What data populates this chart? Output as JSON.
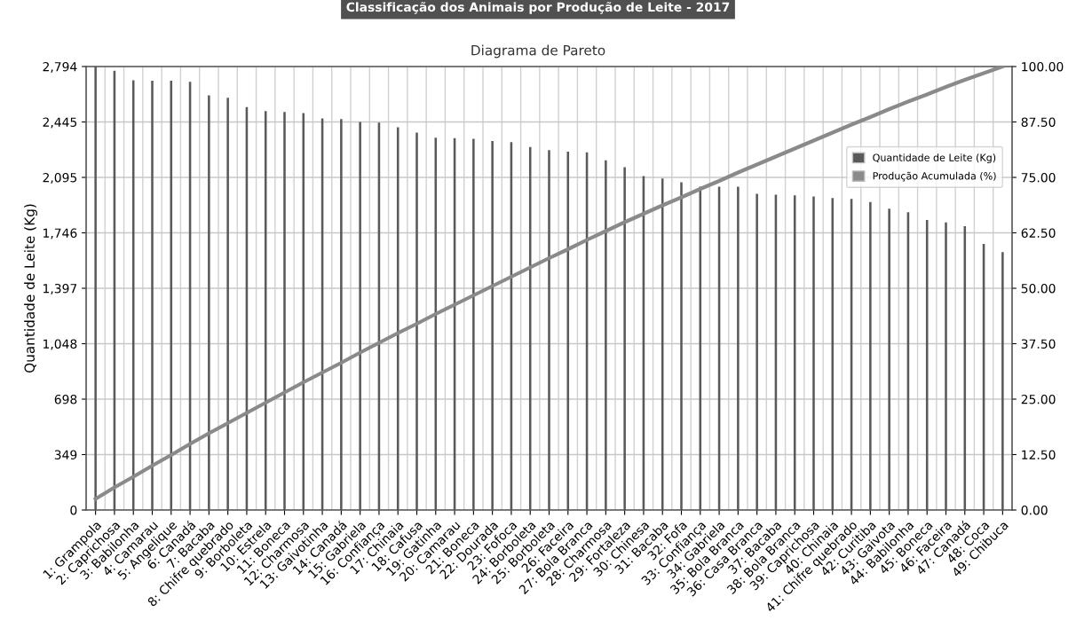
{
  "chart_data": {
    "type": "bar",
    "title": "Classificação dos Animais por Produção de Leite - 2017",
    "subtitle": "Diagrama de Pareto",
    "ylabel": "Quantidade de Leite (Kg)",
    "categories": [
      "1: Grampola",
      "2: Caprichosa",
      "3: Babilonha",
      "4: Camarau",
      "5: Angelique",
      "6: Canadá",
      "7: Bacaba",
      "8: Chifre quebrado",
      "9: Borboleta",
      "10: Estrela",
      "11: Boneca",
      "12: Charmosa",
      "13: Gaivotinha",
      "14: Canadá",
      "15: Gabriela",
      "16: Confiança",
      "17: Chinaia",
      "18: Cafusa",
      "19: Gatinha",
      "20: Camarau",
      "21: Boneca",
      "22: Dourada",
      "23: Fofoca",
      "24: Borboleta",
      "25: Borboleta",
      "26: Faceira",
      "27: Bola Branca",
      "28: Charmosa",
      "29: Fortaleza",
      "30: Chinesa",
      "31: Bacaba",
      "32: Fofa",
      "33: Confiança",
      "34: Gabriela",
      "35: Bola Branca",
      "36: Casa Branca",
      "37: Bacaba",
      "38: Bola Branca",
      "39: Caprichosa",
      "40: Chinaia",
      "41: Chifre quebrado",
      "42: Curitiba",
      "43: Gaivota",
      "44: Babilonha",
      "45: Boneca",
      "46: Faceira",
      "47: Canadá",
      "48: Coca",
      "49: Chibuca"
    ],
    "series": [
      {
        "name": "Quantidade de Leite (Kg)",
        "color": "#5a5a5a",
        "values": [
          2794,
          2768,
          2708,
          2704,
          2704,
          2698,
          2613,
          2597,
          2538,
          2513,
          2507,
          2501,
          2467,
          2463,
          2445,
          2441,
          2411,
          2377,
          2345,
          2343,
          2339,
          2324,
          2317,
          2287,
          2268,
          2257,
          2253,
          2203,
          2160,
          2104,
          2089,
          2065,
          2037,
          2037,
          2037,
          1992,
          1986,
          1982,
          1975,
          1966,
          1960,
          1941,
          1898,
          1876,
          1827,
          1812,
          1788,
          1676,
          1625
        ]
      },
      {
        "name": "Produção Acumulada (%)",
        "type": "line",
        "axis": "y2",
        "color": "#8a8a8a",
        "values": [
          2.5,
          5.1,
          7.5,
          10.0,
          12.4,
          14.9,
          17.3,
          19.6,
          21.9,
          24.2,
          26.5,
          28.8,
          31.0,
          33.2,
          35.5,
          37.7,
          39.9,
          42.0,
          44.2,
          46.3,
          48.4,
          50.5,
          52.6,
          54.7,
          56.8,
          58.8,
          60.9,
          62.9,
          64.9,
          66.8,
          68.7,
          70.5,
          72.4,
          74.2,
          76.1,
          77.9,
          79.7,
          81.5,
          83.3,
          85.1,
          86.9,
          88.6,
          90.4,
          92.1,
          93.7,
          95.4,
          97.0,
          98.5,
          100.0
        ]
      }
    ],
    "ylim": [
      0,
      2794
    ],
    "yticks": [
      0,
      {
        "value": 349.25,
        "label": "349"
      },
      {
        "value": 698.5,
        "label": "698"
      },
      {
        "value": 1047.75,
        "label": "1,048"
      },
      {
        "value": 1397,
        "label": "1,397"
      },
      {
        "value": 1746.25,
        "label": "1,746"
      },
      {
        "value": 2095.5,
        "label": "2,095"
      },
      {
        "value": 2444.75,
        "label": "2,445"
      },
      {
        "value": 2794,
        "label": "2,794"
      }
    ],
    "y2lim": [
      0,
      100
    ],
    "y2ticks": [
      {
        "value": 0,
        "label": "0.00"
      },
      {
        "value": 12.5,
        "label": "12.50"
      },
      {
        "value": 25,
        "label": "25.00"
      },
      {
        "value": 37.5,
        "label": "37.50"
      },
      {
        "value": 50,
        "label": "50.00"
      },
      {
        "value": 62.5,
        "label": "62.50"
      },
      {
        "value": 75,
        "label": "75.00"
      },
      {
        "value": 87.5,
        "label": "87.50"
      },
      {
        "value": 100,
        "label": "100.00"
      }
    ],
    "grid": true,
    "legend": "top right",
    "marker": "none",
    "line_style": "solid"
  }
}
